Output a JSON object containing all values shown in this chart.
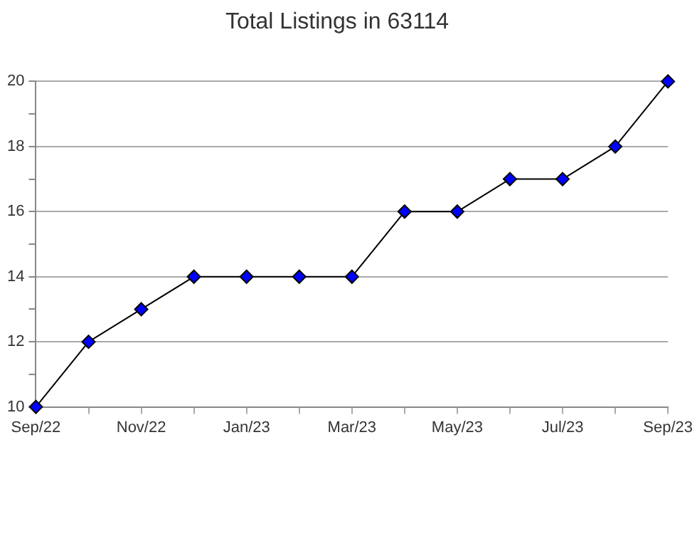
{
  "chart_data": {
    "type": "line",
    "title": "Total Listings in 63114",
    "categories": [
      "Sep/22",
      null,
      "Nov/22",
      null,
      "Jan/23",
      null,
      "Mar/23",
      null,
      "May/23",
      null,
      "Jul/23",
      null,
      "Sep/23"
    ],
    "series": [
      {
        "color": "#0000ff",
        "values": [
          10,
          12,
          13,
          14,
          14,
          14,
          14,
          16,
          16,
          17,
          17,
          18,
          20
        ]
      }
    ],
    "ylim": [
      10,
      20
    ],
    "yticks": [
      10,
      {
        "value": 11,
        "label": null
      },
      12,
      {
        "value": 13,
        "label": null
      },
      14,
      {
        "value": 15,
        "label": null
      },
      16,
      {
        "value": 17,
        "label": null
      },
      18,
      {
        "value": 19,
        "label": null
      },
      20
    ],
    "grid": "y",
    "marker": "diamond",
    "line_style": "solid",
    "legend": false
  }
}
